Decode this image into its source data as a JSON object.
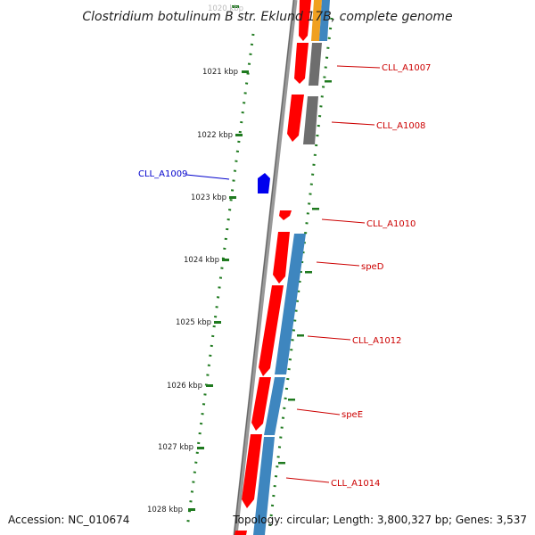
{
  "title": "Clostridium botulinum B str. Eklund 17B, complete genome",
  "accession_label": "Accession: NC_010674",
  "topology_label": "Topology: circular; Length: 3,800,327 bp; Genes: 3,537",
  "colors": {
    "forward_gene": "#ff0000",
    "reverse_gene": "#0000ee",
    "cds_blue": "#3e86bf",
    "cds_gray": "#6e6e6e",
    "cds_orange": "#f0a020",
    "tick": "#1f7a1f",
    "backbone": "#888888"
  },
  "ticks": [
    {
      "label": "1020 kbp"
    },
    {
      "label": "1021 kbp"
    },
    {
      "label": "1022 kbp"
    },
    {
      "label": "1023 kbp"
    },
    {
      "label": "1024 kbp"
    },
    {
      "label": "1025 kbp"
    },
    {
      "label": "1026 kbp"
    },
    {
      "label": "1027 kbp"
    },
    {
      "label": "1028 kbp"
    }
  ],
  "genes": [
    {
      "name": "CLL_A1007",
      "strand": "forward"
    },
    {
      "name": "CLL_A1008",
      "strand": "forward"
    },
    {
      "name": "CLL_A1009",
      "strand": "reverse"
    },
    {
      "name": "CLL_A1010",
      "strand": "forward"
    },
    {
      "name": "speD",
      "strand": "forward"
    },
    {
      "name": "CLL_A1012",
      "strand": "forward"
    },
    {
      "name": "speE",
      "strand": "forward"
    },
    {
      "name": "CLL_A1014",
      "strand": "forward"
    }
  ]
}
